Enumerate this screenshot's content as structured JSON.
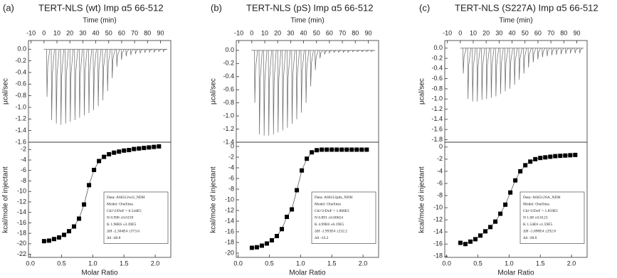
{
  "chart_data": [
    {
      "type": "thermogram",
      "panel_label": "(a)",
      "title": "TERT-NLS (wt) Imp α5 66-512",
      "xlabel": "Time (min)",
      "ylabel": "µcal/sec",
      "color": "#666666",
      "x": [
        2,
        5.6,
        9.2,
        12.8,
        16.4,
        20,
        23.6,
        27.2,
        30.8,
        34.4,
        38,
        41.6,
        45.2,
        48.8,
        52.4,
        56,
        59.6,
        63.2,
        66.8,
        70.4,
        74,
        77.6,
        81.2,
        84.8,
        88.4,
        92
      ],
      "values": [
        -0.82,
        -1.22,
        -1.28,
        -1.3,
        -1.28,
        -1.25,
        -1.22,
        -1.18,
        -1.14,
        -1.1,
        -1.05,
        -0.98,
        -0.88,
        -0.72,
        -0.5,
        -0.3,
        -0.18,
        -0.12,
        -0.1,
        -0.08,
        -0.07,
        -0.06,
        -0.05,
        -0.05,
        -0.04,
        -0.04
      ],
      "xlim": [
        -12,
        98
      ],
      "xticks": [
        -10,
        0,
        10,
        20,
        30,
        40,
        50,
        60,
        70,
        80,
        90
      ],
      "ylim": [
        -1.6,
        0.15
      ],
      "yticks": [
        {
          "value": 0,
          "label": "0.0"
        },
        -0.2,
        -0.4,
        -0.6,
        -0.8,
        {
          "value": -1,
          "label": "-1.0"
        },
        -1.2,
        -1.4,
        -1.6
      ]
    },
    {
      "type": "scatter",
      "xlabel": "Molar Ratio",
      "ylabel": "kcal/mole of injectant",
      "color": "#000000",
      "x": [
        0.22,
        0.3,
        0.38,
        0.46,
        0.54,
        0.62,
        0.7,
        0.78,
        0.86,
        0.94,
        1.02,
        1.1,
        1.18,
        1.26,
        1.34,
        1.42,
        1.5,
        1.58,
        1.66,
        1.74,
        1.82,
        1.9,
        1.98,
        2.06
      ],
      "values": [
        -19.5,
        -19.4,
        -19.1,
        -18.8,
        -18.3,
        -17.6,
        -16.7,
        -15.2,
        -12.5,
        -8.8,
        -5.9,
        -4.2,
        -3.4,
        -2.9,
        -2.6,
        -2.4,
        -2.2,
        -2.1,
        -1.9,
        -1.8,
        -1.7,
        -1.6,
        -1.5,
        -1.4
      ],
      "xlim": [
        -0.03,
        2.25
      ],
      "xticks": [
        {
          "value": 0,
          "label": "0.0"
        },
        0.5,
        {
          "value": 1,
          "label": "1.0"
        },
        1.5,
        {
          "value": 2,
          "label": "2.0"
        }
      ],
      "ylim": [
        -22.6,
        -0.6
      ],
      "yticks": [
        -22,
        -20,
        -18,
        -16,
        -14,
        -12,
        -10,
        -8,
        -6,
        -4,
        -2
      ],
      "annotation_lines": [
        "Data: A66512wt2_NDH",
        "Model: OneSites",
        "Chi^2/DoF = 6.544E5",
        "N    0.998   ±0.0159",
        "K    1.98E6  ±3.39E5",
        "ΔH   -2.304E4     ±373.6",
        "ΔS   -48.8"
      ]
    },
    {
      "type": "thermogram",
      "panel_label": "(b)",
      "title": "TERT-NLS (pS) Imp α5 66-512",
      "xlabel": "Time (min)",
      "ylabel": "µcal/sec",
      "color": "#666666",
      "x": [
        2,
        5.6,
        9.2,
        12.8,
        16.4,
        20,
        23.6,
        27.2,
        30.8,
        34.4,
        38,
        41.6,
        45.2,
        48.8,
        52.4,
        56,
        59.6,
        63.2,
        66.8,
        70.4,
        74,
        77.6,
        81.2,
        84.8,
        88.4,
        92
      ],
      "values": [
        -0.8,
        -1.28,
        -1.3,
        -1.3,
        -1.28,
        -1.25,
        -1.22,
        -1.18,
        -1.12,
        -1.05,
        -0.95,
        -0.8,
        -0.55,
        -0.3,
        -0.12,
        -0.06,
        -0.04,
        -0.03,
        -0.03,
        -0.03,
        -0.03,
        -0.02,
        -0.02,
        -0.02,
        -0.02,
        -0.02
      ],
      "xlim": [
        -12,
        98
      ],
      "xticks": [
        -10,
        0,
        10,
        20,
        30,
        40,
        50,
        60,
        70,
        80,
        90
      ],
      "ylim": [
        -1.4,
        0.15
      ],
      "yticks": [
        {
          "value": 0,
          "label": "0.0"
        },
        -0.2,
        -0.4,
        -0.6,
        -0.8,
        {
          "value": -1,
          "label": "-1.0"
        },
        -1.2,
        -1.4
      ]
    },
    {
      "type": "scatter",
      "xlabel": "Molar Ratio",
      "ylabel": "kcal/mole of injectant",
      "color": "#000000",
      "x": [
        0.22,
        0.3,
        0.38,
        0.46,
        0.54,
        0.62,
        0.7,
        0.78,
        0.86,
        0.94,
        1.02,
        1.1,
        1.18,
        1.26,
        1.34,
        1.42,
        1.5,
        1.58,
        1.66,
        1.74,
        1.82,
        1.9,
        1.98,
        2.06
      ],
      "values": [
        -19,
        -18.9,
        -18.6,
        -18.2,
        -17.6,
        -16.8,
        -15.5,
        -13.2,
        -11.8,
        -8.2,
        -4.5,
        -2.3,
        -1.1,
        -0.7,
        -0.6,
        -0.6,
        -0.6,
        -0.6,
        -0.6,
        -0.6,
        -0.6,
        -0.6,
        -0.6,
        -0.6
      ],
      "xlim": [
        -0.03,
        2.25
      ],
      "xticks": [
        {
          "value": 0,
          "label": "0.0"
        },
        0.5,
        {
          "value": 1,
          "label": "1.0"
        },
        1.5,
        {
          "value": 2,
          "label": "2.0"
        }
      ],
      "ylim": [
        -20.8,
        0.8
      ],
      "yticks": [
        -20,
        -18,
        -16,
        -14,
        -12,
        -10,
        -8,
        -6,
        -4,
        -2,
        0
      ],
      "annotation_lines": [
        "Data: A66512pda_NDH",
        "Model: OneSites",
        "Chi^2/DoF = 1.866E5",
        "N    0.891   ±0.00654",
        "K    4.99E6  ±6.19E5",
        "ΔH   -1.993E4     ±232.2",
        "ΔS   -33.2"
      ]
    },
    {
      "type": "thermogram",
      "panel_label": "(c)",
      "title": "TERT-NLS (S227A) Imp α5 66-512",
      "xlabel": "Time (min)",
      "ylabel": "µcal/sec",
      "color": "#666666",
      "x": [
        2,
        5.6,
        9.2,
        12.8,
        16.4,
        20,
        23.6,
        27.2,
        30.8,
        34.4,
        38,
        41.6,
        45.2,
        48.8,
        52.4,
        56,
        59.6,
        63.2,
        66.8,
        70.4,
        74,
        77.6,
        81.2,
        84.8,
        88.4,
        92
      ],
      "values": [
        -0.5,
        -1.0,
        -1.05,
        -1.05,
        -1.02,
        -1.0,
        -0.98,
        -0.95,
        -0.9,
        -0.85,
        -0.8,
        -0.72,
        -0.62,
        -0.5,
        -0.38,
        -0.28,
        -0.22,
        -0.18,
        -0.16,
        -0.14,
        -0.13,
        -0.12,
        -0.11,
        -0.1,
        -0.1,
        -0.1
      ],
      "xlim": [
        -12,
        98
      ],
      "xticks": [
        -10,
        0,
        10,
        20,
        30,
        40,
        50,
        60,
        70,
        80,
        90
      ],
      "ylim": [
        -1.85,
        0.15
      ],
      "yticks": [
        {
          "value": 0,
          "label": "0.0"
        },
        -0.2,
        -0.4,
        -0.6,
        -0.8,
        {
          "value": -1,
          "label": "-1.0"
        },
        -1.2,
        -1.4,
        -1.6,
        -1.8
      ]
    },
    {
      "type": "scatter",
      "xlabel": "Molar Ratio",
      "ylabel": "kcal/mole of injectant",
      "color": "#000000",
      "x": [
        0.22,
        0.3,
        0.38,
        0.46,
        0.54,
        0.62,
        0.7,
        0.78,
        0.86,
        0.94,
        1.02,
        1.1,
        1.18,
        1.26,
        1.34,
        1.42,
        1.5,
        1.58,
        1.66,
        1.74,
        1.82,
        1.9,
        1.98,
        2.06
      ],
      "values": [
        -15.8,
        -16,
        -15.6,
        -15.2,
        -14.6,
        -13.9,
        -13.2,
        -12.3,
        -11,
        -9.5,
        -7.5,
        -5.5,
        -4,
        -3,
        -2.4,
        -2,
        -1.8,
        -1.7,
        -1.6,
        -1.5,
        -1.45,
        -1.4,
        -1.35,
        -1.3
      ],
      "xlim": [
        -0.03,
        2.25
      ],
      "xticks": [
        {
          "value": 0,
          "label": "0.0"
        },
        0.5,
        {
          "value": 1,
          "label": "1.0"
        },
        1.5,
        {
          "value": 2,
          "label": "2.0"
        }
      ],
      "ylim": [
        -18.2,
        0.8
      ],
      "yticks": [
        -18,
        -16,
        -14,
        -12,
        -10,
        -8,
        -6,
        -4,
        -2,
        0
      ],
      "annotation_lines": [
        "Data: A66512SA_NDH",
        "Model: OneSites",
        "Chi^2/DoF = 1.859E5",
        "N    1.08    ±0.0123",
        "K    1.54E6  ±1.59E5",
        "ΔH   -1.698E4     ±292.8",
        "ΔS   -28.6"
      ]
    }
  ]
}
